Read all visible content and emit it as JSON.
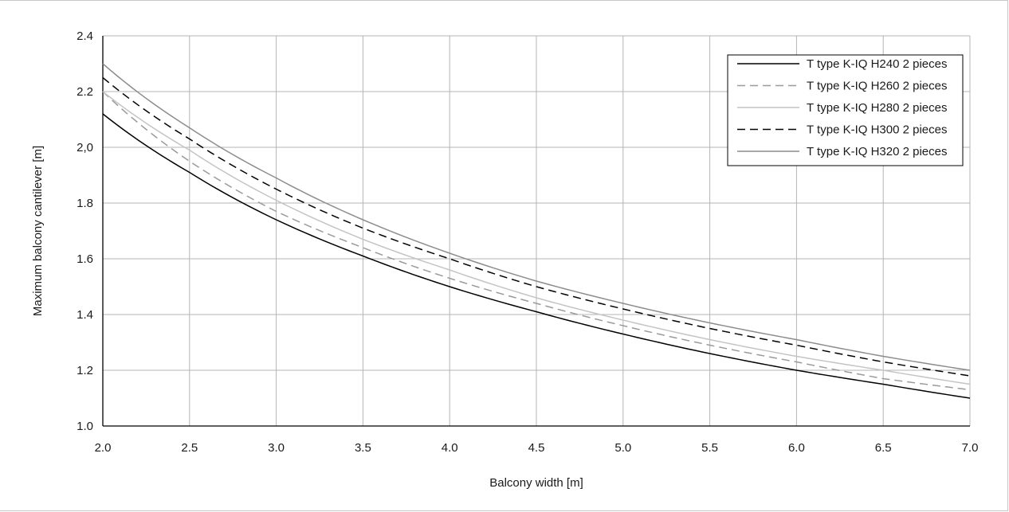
{
  "chart_data": {
    "type": "line",
    "title": "",
    "xlabel": "Balcony width [m]",
    "ylabel": "Maximum balcony cantilever [m]",
    "xlim": [
      2.0,
      7.0
    ],
    "ylim": [
      1.0,
      2.4
    ],
    "xticks": [
      "2.0",
      "2.5",
      "3.0",
      "3.5",
      "4.0",
      "4.5",
      "5.0",
      "5.5",
      "6.0",
      "6.5",
      "7.0"
    ],
    "yticks": [
      "1.0",
      "1.2",
      "1.4",
      "1.6",
      "1.8",
      "2,0",
      "2.2",
      "2.4"
    ],
    "grid": true,
    "legend_position": "top-right",
    "x": [
      2.0,
      2.5,
      3.0,
      3.5,
      4.0,
      4.5,
      5.0,
      5.5,
      6.0,
      6.5,
      7.0
    ],
    "series": [
      {
        "name": "T type K-IQ H240 2 pieces",
        "color": "#000000",
        "dash": "solid",
        "values": [
          2.12,
          1.91,
          1.74,
          1.61,
          1.5,
          1.41,
          1.33,
          1.26,
          1.2,
          1.15,
          1.1
        ]
      },
      {
        "name": "T type K-IQ H260 2 pieces",
        "color": "#9a9a9a",
        "dash": "dashed",
        "values": [
          2.2,
          1.95,
          1.77,
          1.64,
          1.53,
          1.44,
          1.36,
          1.29,
          1.23,
          1.17,
          1.13
        ]
      },
      {
        "name": "T type K-IQ H280 2 pieces",
        "color": "#c4c4c4",
        "dash": "solid",
        "values": [
          2.2,
          1.99,
          1.81,
          1.67,
          1.56,
          1.46,
          1.38,
          1.31,
          1.25,
          1.2,
          1.15
        ]
      },
      {
        "name": "T type K-IQ H300 2 pieces",
        "color": "#000000",
        "dash": "dashed",
        "values": [
          2.25,
          2.03,
          1.85,
          1.71,
          1.6,
          1.5,
          1.42,
          1.35,
          1.29,
          1.23,
          1.18
        ]
      },
      {
        "name": "T type K-IQ H320 2 pieces",
        "color": "#8c8c8c",
        "dash": "solid",
        "values": [
          2.3,
          2.07,
          1.89,
          1.74,
          1.62,
          1.52,
          1.44,
          1.37,
          1.31,
          1.25,
          1.2
        ]
      }
    ]
  }
}
